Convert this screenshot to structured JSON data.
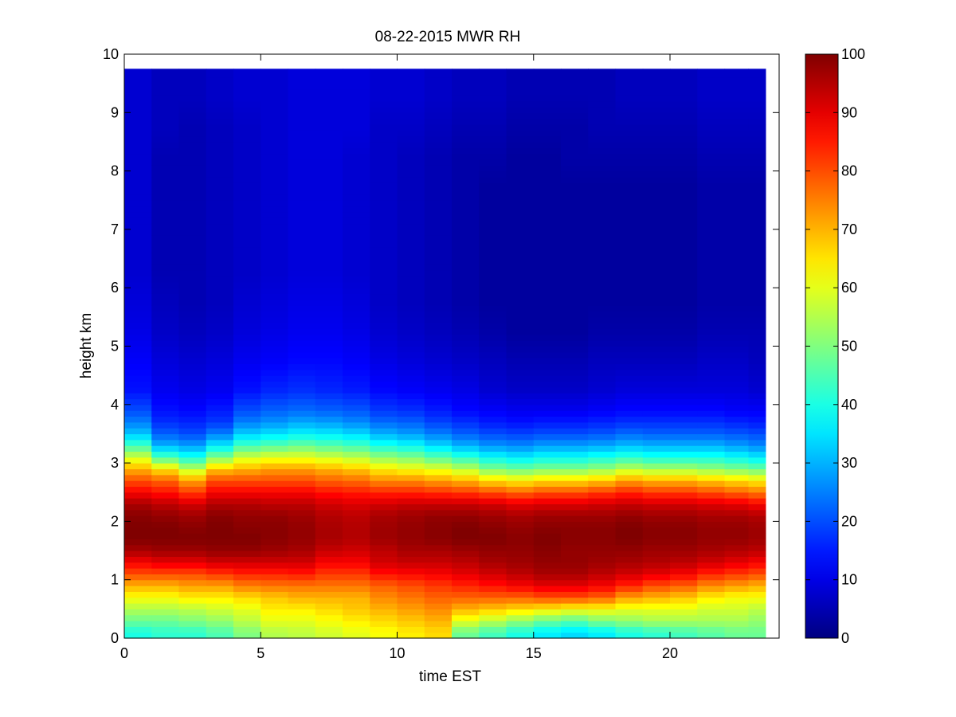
{
  "chart_data": {
    "type": "heatmap",
    "title": "08-22-2015 MWR RH",
    "xlabel": "time EST",
    "ylabel": "height km",
    "xlim": [
      0,
      24
    ],
    "ylim": [
      0,
      10
    ],
    "x_ticks": [
      0,
      5,
      10,
      15,
      20
    ],
    "y_ticks": [
      0,
      1,
      2,
      3,
      4,
      5,
      6,
      7,
      8,
      9,
      10
    ],
    "data_x_range": [
      0,
      23.5
    ],
    "data_y_range": [
      0,
      9.75
    ],
    "colorbar": {
      "colormap": "jet",
      "clim": [
        0,
        100
      ],
      "ticks": [
        0,
        10,
        20,
        30,
        40,
        50,
        60,
        70,
        80,
        90,
        100
      ]
    },
    "grid": false,
    "y_levels": [
      0.1,
      0.3,
      0.5,
      0.7,
      0.9,
      1.1,
      1.3,
      1.5,
      1.7,
      1.9,
      2.1,
      2.3,
      2.5,
      2.7,
      2.9,
      3.1,
      3.3,
      3.5,
      3.7,
      3.9,
      4.25,
      4.75,
      5.25,
      5.75,
      6.25,
      6.75,
      7.25,
      7.75,
      8.25,
      8.75,
      9.25
    ],
    "columns": [
      {
        "t": 0.5,
        "rh": [
          40,
          48,
          55,
          62,
          70,
          80,
          88,
          96,
          100,
          100,
          99,
          96,
          88,
          80,
          70,
          58,
          44,
          32,
          25,
          20,
          14,
          12,
          10,
          9,
          8,
          8,
          8,
          8,
          8,
          8,
          8
        ]
      },
      {
        "t": 1.5,
        "rh": [
          42,
          48,
          55,
          62,
          70,
          80,
          90,
          97,
          100,
          100,
          98,
          94,
          86,
          78,
          65,
          45,
          30,
          22,
          17,
          14,
          11,
          9,
          7,
          6,
          5,
          5,
          5,
          5,
          5,
          6,
          6
        ]
      },
      {
        "t": 2.5,
        "rh": [
          42,
          50,
          56,
          64,
          72,
          80,
          90,
          97,
          100,
          99,
          97,
          92,
          82,
          72,
          56,
          40,
          28,
          20,
          16,
          13,
          10,
          8,
          6,
          5,
          5,
          5,
          5,
          5,
          5,
          5,
          6
        ]
      },
      {
        "t": 3.5,
        "rh": [
          45,
          52,
          58,
          64,
          72,
          82,
          92,
          98,
          100,
          100,
          99,
          95,
          88,
          80,
          68,
          50,
          36,
          25,
          18,
          15,
          11,
          9,
          7,
          6,
          6,
          6,
          6,
          6,
          6,
          6,
          7
        ]
      },
      {
        "t": 4.5,
        "rh": [
          50,
          56,
          60,
          66,
          75,
          84,
          92,
          98,
          100,
          99,
          98,
          95,
          88,
          80,
          70,
          58,
          44,
          33,
          25,
          20,
          14,
          11,
          9,
          8,
          7,
          7,
          7,
          7,
          7,
          7,
          8
        ]
      },
      {
        "t": 5.5,
        "rh": [
          55,
          60,
          64,
          68,
          76,
          84,
          92,
          97,
          99,
          99,
          98,
          94,
          88,
          80,
          72,
          60,
          46,
          35,
          27,
          22,
          16,
          12,
          10,
          9,
          8,
          8,
          8,
          8,
          8,
          8,
          8
        ]
      },
      {
        "t": 6.5,
        "rh": [
          56,
          60,
          64,
          70,
          76,
          85,
          92,
          96,
          98,
          98,
          97,
          94,
          88,
          80,
          72,
          60,
          48,
          37,
          29,
          23,
          17,
          13,
          11,
          10,
          9,
          9,
          9,
          9,
          9,
          9,
          9
        ]
      },
      {
        "t": 7.5,
        "rh": [
          58,
          62,
          66,
          70,
          76,
          82,
          88,
          93,
          96,
          96,
          95,
          92,
          86,
          78,
          70,
          58,
          46,
          36,
          28,
          22,
          16,
          13,
          11,
          10,
          9,
          9,
          9,
          9,
          9,
          9,
          9
        ]
      },
      {
        "t": 8.5,
        "rh": [
          60,
          64,
          68,
          70,
          76,
          82,
          88,
          92,
          95,
          95,
          94,
          91,
          85,
          77,
          68,
          56,
          44,
          34,
          26,
          21,
          15,
          12,
          10,
          9,
          8,
          8,
          8,
          8,
          8,
          9,
          9
        ]
      },
      {
        "t": 9.5,
        "rh": [
          62,
          66,
          70,
          74,
          78,
          86,
          92,
          94,
          97,
          97,
          96,
          92,
          84,
          74,
          64,
          52,
          40,
          30,
          23,
          18,
          13,
          10,
          8,
          7,
          7,
          7,
          7,
          7,
          7,
          7,
          8
        ]
      },
      {
        "t": 10.5,
        "rh": [
          64,
          68,
          72,
          76,
          80,
          87,
          93,
          96,
          98,
          98,
          97,
          93,
          84,
          74,
          62,
          50,
          38,
          28,
          22,
          17,
          12,
          9,
          7,
          6,
          6,
          6,
          6,
          6,
          6,
          7,
          8
        ]
      },
      {
        "t": 11.5,
        "rh": [
          66,
          70,
          74,
          78,
          82,
          88,
          93,
          96,
          99,
          99,
          98,
          93,
          83,
          72,
          60,
          46,
          34,
          25,
          19,
          15,
          11,
          8,
          6,
          5,
          5,
          5,
          5,
          5,
          5,
          6,
          7
        ]
      },
      {
        "t": 12.5,
        "rh": [
          48,
          60,
          70,
          78,
          84,
          90,
          94,
          97,
          100,
          100,
          98,
          93,
          82,
          70,
          56,
          42,
          30,
          22,
          17,
          13,
          10,
          7,
          5,
          4,
          4,
          4,
          4,
          4,
          4,
          5,
          6
        ]
      },
      {
        "t": 13.5,
        "rh": [
          44,
          56,
          68,
          78,
          86,
          92,
          96,
          98,
          100,
          99,
          97,
          92,
          80,
          66,
          50,
          38,
          27,
          20,
          15,
          12,
          8,
          6,
          4,
          3,
          3,
          3,
          3,
          3,
          4,
          5,
          6
        ]
      },
      {
        "t": 14.5,
        "rh": [
          40,
          52,
          66,
          78,
          88,
          94,
          97,
          98,
          99,
          98,
          96,
          90,
          78,
          64,
          48,
          36,
          26,
          19,
          14,
          11,
          7,
          5,
          3,
          3,
          3,
          3,
          3,
          3,
          3,
          4,
          5
        ]
      },
      {
        "t": 15.5,
        "rh": [
          36,
          48,
          64,
          80,
          90,
          96,
          98,
          99,
          100,
          99,
          97,
          91,
          80,
          66,
          50,
          38,
          28,
          20,
          15,
          11,
          7,
          5,
          3,
          3,
          3,
          3,
          3,
          3,
          3,
          4,
          5
        ]
      },
      {
        "t": 16.5,
        "rh": [
          34,
          46,
          62,
          80,
          90,
          96,
          98,
          98,
          99,
          99,
          97,
          91,
          80,
          66,
          50,
          38,
          28,
          20,
          15,
          11,
          7,
          5,
          3,
          3,
          3,
          3,
          3,
          3,
          4,
          4,
          5
        ]
      },
      {
        "t": 17.5,
        "rh": [
          36,
          50,
          62,
          78,
          88,
          94,
          97,
          98,
          99,
          99,
          97,
          92,
          82,
          68,
          52,
          40,
          29,
          21,
          16,
          12,
          8,
          6,
          4,
          3,
          3,
          3,
          3,
          3,
          4,
          5,
          5
        ]
      },
      {
        "t": 18.5,
        "rh": [
          40,
          52,
          60,
          72,
          84,
          92,
          96,
          98,
          100,
          100,
          98,
          93,
          84,
          72,
          56,
          42,
          31,
          23,
          17,
          13,
          9,
          6,
          4,
          3,
          3,
          3,
          3,
          3,
          4,
          5,
          6
        ]
      },
      {
        "t": 19.5,
        "rh": [
          42,
          54,
          60,
          70,
          80,
          90,
          95,
          97,
          99,
          99,
          97,
          92,
          82,
          70,
          54,
          40,
          30,
          22,
          17,
          13,
          9,
          6,
          4,
          3,
          3,
          3,
          3,
          3,
          4,
          5,
          6
        ]
      },
      {
        "t": 20.5,
        "rh": [
          44,
          54,
          60,
          68,
          78,
          88,
          94,
          97,
          99,
          99,
          97,
          92,
          82,
          70,
          54,
          40,
          30,
          22,
          17,
          13,
          9,
          6,
          4,
          3,
          3,
          3,
          3,
          3,
          4,
          5,
          6
        ]
      },
      {
        "t": 21.5,
        "rh": [
          46,
          54,
          58,
          64,
          74,
          84,
          92,
          96,
          98,
          98,
          96,
          91,
          80,
          68,
          52,
          40,
          30,
          22,
          17,
          13,
          9,
          7,
          5,
          4,
          4,
          4,
          4,
          4,
          5,
          6,
          7
        ]
      },
      {
        "t": 22.5,
        "rh": [
          48,
          54,
          58,
          62,
          72,
          82,
          90,
          95,
          98,
          98,
          96,
          90,
          78,
          66,
          50,
          38,
          28,
          21,
          16,
          12,
          9,
          7,
          5,
          4,
          4,
          4,
          4,
          4,
          5,
          6,
          7
        ]
      },
      {
        "t": 23.25,
        "rh": [
          48,
          52,
          56,
          62,
          70,
          80,
          88,
          94,
          97,
          97,
          95,
          88,
          76,
          64,
          48,
          36,
          26,
          20,
          15,
          12,
          8,
          6,
          5,
          4,
          4,
          4,
          4,
          4,
          5,
          6,
          7
        ]
      }
    ]
  }
}
